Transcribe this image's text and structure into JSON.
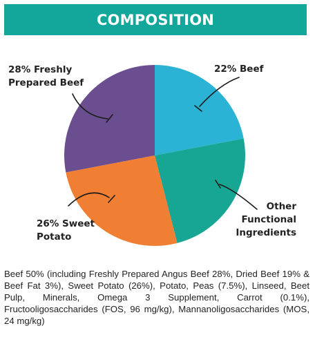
{
  "header": {
    "title": "COMPOSITION"
  },
  "chart_data": {
    "type": "pie",
    "start_angle_deg": 0,
    "direction": "clockwise",
    "slices": [
      {
        "label_lines": [
          "22% Beef"
        ],
        "value": 22,
        "color": "#2bb3d6"
      },
      {
        "label_lines": [
          "Other",
          "Functional",
          "Ingredients"
        ],
        "value": 24,
        "color": "#17a693"
      },
      {
        "label_lines": [
          "26% Sweet",
          "Potato"
        ],
        "value": 26,
        "color": "#f07f33"
      },
      {
        "label_lines": [
          "28% Freshly",
          "Prepared Beef"
        ],
        "value": 28,
        "color": "#6a4e8f"
      }
    ]
  },
  "ingredients": {
    "text": "Beef 50% (including Freshly Prepared Angus Beef 28%, Dried Beef 19% & Beef Fat 3%), Sweet Potato (26%), Potato, Peas (7.5%), Linseed, Beet Pulp, Minerals, Omega 3 Supplement, Carrot (0.1%), Fructooligosaccharides (FOS, 96 mg/kg), Mannanoligosaccharides (MOS, 24 mg/kg)"
  }
}
